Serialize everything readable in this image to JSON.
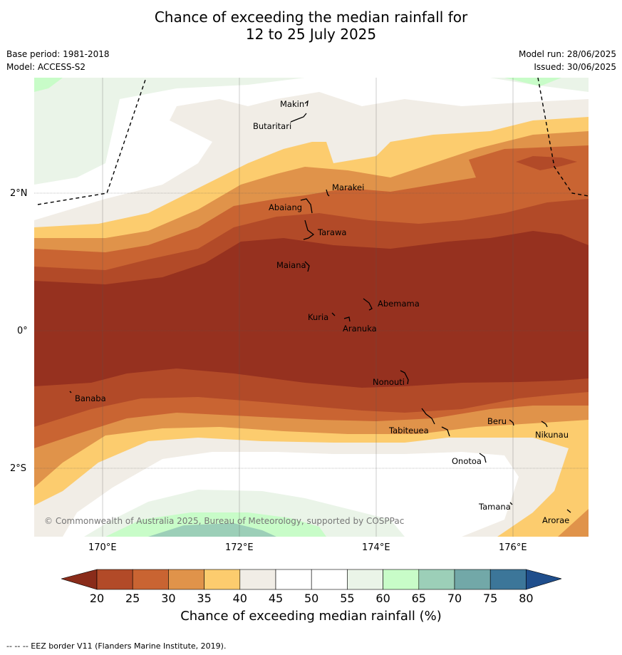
{
  "title_line1": "Chance of exceeding the median rainfall for",
  "title_line2": "12 to 25 July 2025",
  "base_period": "Base period: 1981-2018",
  "model": "Model: ACCESS-S2",
  "model_run": "Model run: 28/06/2025",
  "issued": "Issued: 30/06/2025",
  "copyright": "© Commonwealth of Australia 2025, Bureau of Meteorology, supported by COSPPac",
  "footer": "--  --  -- EEZ border V11 (Flanders Marine Institute, 2019).",
  "lon_labels": [
    "170°E",
    "172°E",
    "174°E",
    "176°E"
  ],
  "lat_labels": [
    "2°N",
    "0°",
    "2°S"
  ],
  "places": {
    "makin": "Makin",
    "butaritari": "Butaritari",
    "marakei": "Marakei",
    "abaiang": "Abaiang",
    "tarawa": "Tarawa",
    "maiana": "Maiana",
    "abemama": "Abemama",
    "kuria": "Kuria",
    "aranuka": "Aranuka",
    "nonouti": "Nonouti",
    "banaba": "Banaba",
    "tabiteuea": "Tabiteuea",
    "beru": "Beru",
    "nikunau": "Nikunau",
    "onotoa": "Onotoa",
    "tamana": "Tamana",
    "arorae": "Arorae"
  },
  "colorbar": {
    "title": "Chance of exceeding median rainfall (%)",
    "ticks": [
      "20",
      "25",
      "30",
      "35",
      "40",
      "45",
      "50",
      "55",
      "60",
      "65",
      "70",
      "75",
      "80"
    ],
    "low_color": "#8a2c1a",
    "high_color": "#1f4e8c",
    "colors": [
      "#b24a28",
      "#c96432",
      "#e0934a",
      "#fccc6e",
      "#f1ede6",
      "#ffffff",
      "#ffffff",
      "#eaf4e8",
      "#c8fcc8",
      "#9ccfb8",
      "#72a8a8",
      "#3c7699"
    ]
  },
  "map_colors": {
    "c15": "#96311f",
    "c20": "#b24a28",
    "c25": "#c96432",
    "c30": "#e0934a",
    "c35": "#fccc6e",
    "c40": "#f1ede6",
    "c45": "#ffffff",
    "c55": "#eaf4e8",
    "c60": "#c8fcc8",
    "c65": "#9ccfb8"
  }
}
